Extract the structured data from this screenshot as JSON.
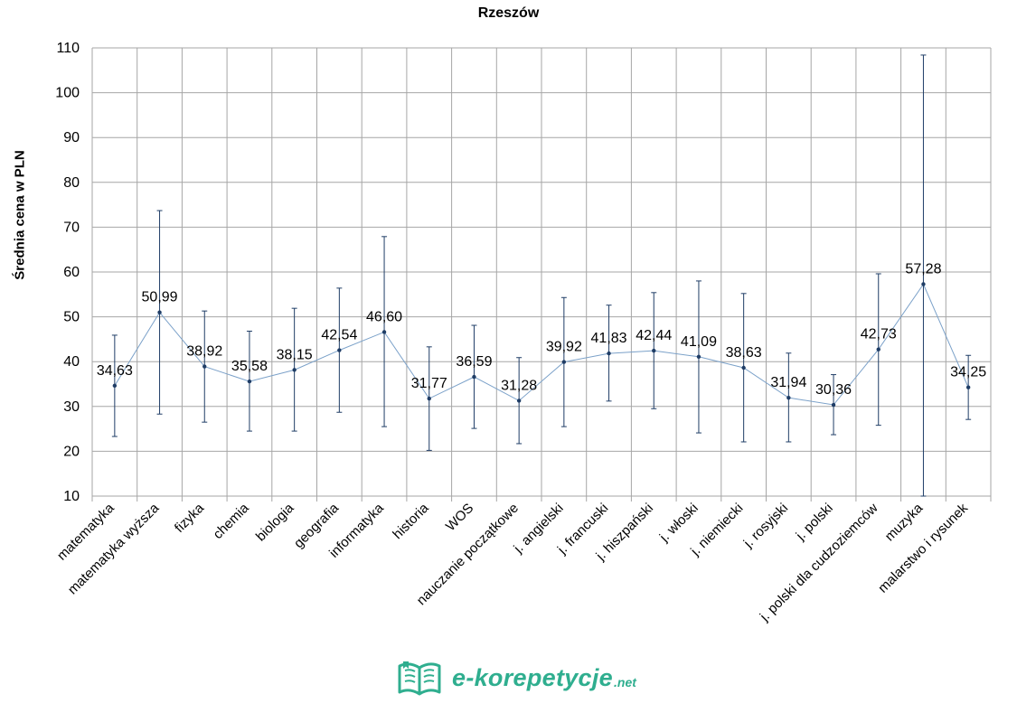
{
  "chart_data": {
    "type": "line",
    "title": "Rzeszów",
    "ylabel": "Średnia cena w PLN",
    "xlabel": "",
    "ylim": [
      10,
      110
    ],
    "yticks": [
      10,
      20,
      30,
      40,
      50,
      60,
      70,
      80,
      90,
      100,
      110
    ],
    "grid": true,
    "categories": [
      "matematyka",
      "matematyka wyższa",
      "fizyka",
      "chemia",
      "biologia",
      "geografia",
      "informatyka",
      "historia",
      "WOS",
      "nauczanie początkowe",
      "j. angielski",
      "j. francuski",
      "j. hiszpański",
      "j. włoski",
      "j. niemiecki",
      "j. rosyjski",
      "j. polski",
      "j. polski dla cudzoziemców",
      "muzyka",
      "malarstwo i rysunek"
    ],
    "values": [
      34.63,
      50.99,
      38.92,
      35.58,
      38.15,
      42.54,
      46.6,
      31.77,
      36.59,
      31.28,
      39.92,
      41.83,
      42.44,
      41.09,
      38.63,
      31.94,
      30.36,
      42.73,
      57.28,
      34.25
    ],
    "labels": [
      "34,63",
      "50,99",
      "38,92",
      "35,58",
      "38,15",
      "42,54",
      "46,60",
      "31,77",
      "36,59",
      "31,28",
      "39,92",
      "41,83",
      "42,44",
      "41,09",
      "38,63",
      "31,94",
      "30,36",
      "42,73",
      "57,28",
      "34,25"
    ],
    "error_low": [
      23.3,
      28.3,
      26.5,
      24.5,
      24.5,
      28.7,
      25.5,
      20.2,
      25.1,
      21.7,
      25.5,
      31.2,
      29.5,
      24.1,
      22.1,
      22.1,
      23.7,
      25.8,
      10.0,
      27.1
    ],
    "error_high": [
      45.9,
      73.7,
      51.3,
      46.8,
      51.9,
      56.4,
      67.9,
      43.3,
      48.1,
      40.9,
      54.3,
      52.6,
      55.4,
      58.0,
      55.2,
      41.9,
      37.1,
      59.6,
      108.4,
      41.4
    ],
    "colors": {
      "line": "#7ba1c9",
      "point": "#1f3d66",
      "error_bar": "#1f3d66",
      "grid": "#a6a6a6"
    }
  },
  "logo": {
    "text": "e-korepetycje",
    "suffix": ".net",
    "color": "#2fae8f"
  }
}
